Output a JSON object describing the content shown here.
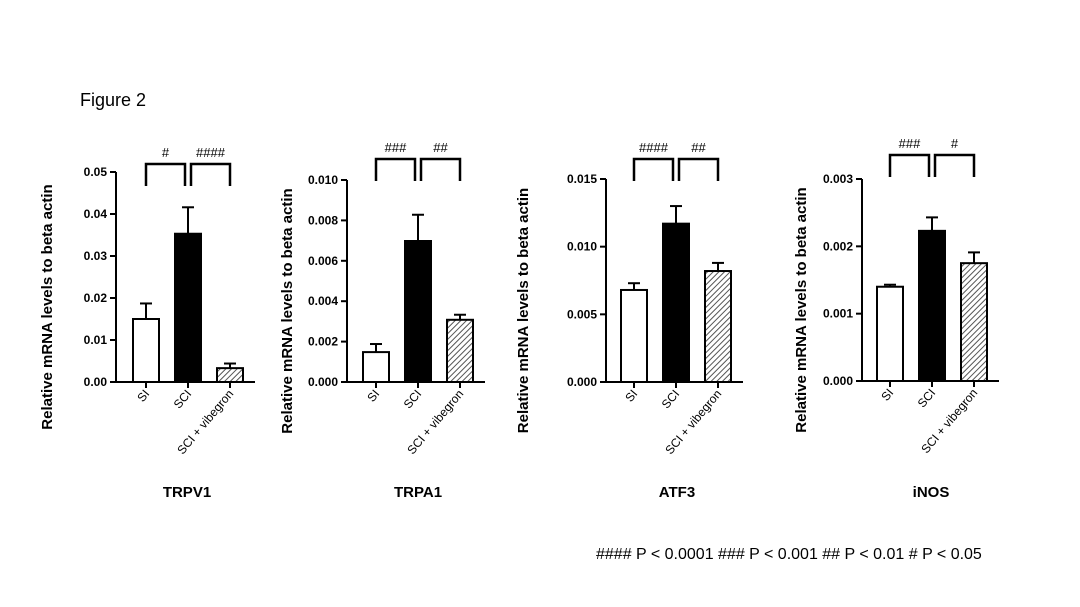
{
  "figure_label": "Figure 2",
  "footer_note": "#### P < 0.0001 ### P < 0.001 ## P < 0.01  # P < 0.05",
  "colors": {
    "axis": "#000000",
    "bar_open": "#ffffff",
    "bar_filled": "#000000",
    "hatch": "#555555"
  },
  "chart_data": [
    {
      "type": "bar",
      "title": "TRPV1",
      "ylabel": "Relative mRNA levels to beta actin",
      "categories": [
        "SI",
        "SCI",
        "SCI + vibegron"
      ],
      "values": [
        0.015,
        0.0353,
        0.0033
      ],
      "errors": [
        0.0037,
        0.0063,
        0.0011
      ],
      "bar_styles": [
        "open",
        "filled",
        "hatched"
      ],
      "ylim": [
        0,
        0.05
      ],
      "yticks": [
        "0.00",
        "0.01",
        "0.02",
        "0.03",
        "0.04",
        "0.05"
      ],
      "significance": [
        {
          "from": 0,
          "to": 1,
          "label": "#"
        },
        {
          "from": 1,
          "to": 2,
          "label": "####"
        }
      ]
    },
    {
      "type": "bar",
      "title": "TRPA1",
      "ylabel": "Relative mRNA levels to beta actin",
      "categories": [
        "SI",
        "SCI",
        "SCI + vibegron"
      ],
      "values": [
        0.00148,
        0.00698,
        0.00308
      ],
      "errors": [
        0.0004,
        0.0013,
        0.00025
      ],
      "bar_styles": [
        "open",
        "filled",
        "hatched"
      ],
      "ylim": [
        0,
        0.01
      ],
      "yticks": [
        "0.000",
        "0.002",
        "0.004",
        "0.006",
        "0.008",
        "0.010"
      ],
      "significance": [
        {
          "from": 0,
          "to": 1,
          "label": "###"
        },
        {
          "from": 1,
          "to": 2,
          "label": "##"
        }
      ]
    },
    {
      "type": "bar",
      "title": "ATF3",
      "ylabel": "Relative mRNA levels to beta actin",
      "categories": [
        "SI",
        "SCI",
        "SCI + vibegron"
      ],
      "values": [
        0.0068,
        0.0117,
        0.0082
      ],
      "errors": [
        0.0005,
        0.0013,
        0.0006
      ],
      "bar_styles": [
        "open",
        "filled",
        "hatched"
      ],
      "ylim": [
        0,
        0.015
      ],
      "yticks": [
        "0.000",
        "0.005",
        "0.010",
        "0.015"
      ],
      "significance": [
        {
          "from": 0,
          "to": 1,
          "label": "####"
        },
        {
          "from": 1,
          "to": 2,
          "label": "##"
        }
      ]
    },
    {
      "type": "bar",
      "title": "iNOS",
      "ylabel": "Relative mRNA levels to beta actin",
      "categories": [
        "SI",
        "SCI",
        "SCI + vibegron"
      ],
      "values": [
        0.0014,
        0.00223,
        0.00175
      ],
      "errors": [
        3e-05,
        0.0002,
        0.00016
      ],
      "bar_styles": [
        "open",
        "filled",
        "hatched"
      ],
      "ylim": [
        0,
        0.003
      ],
      "yticks": [
        "0.000",
        "0.001",
        "0.002",
        "0.003"
      ],
      "significance": [
        {
          "from": 0,
          "to": 1,
          "label": "###"
        },
        {
          "from": 1,
          "to": 2,
          "label": "#"
        }
      ]
    }
  ]
}
